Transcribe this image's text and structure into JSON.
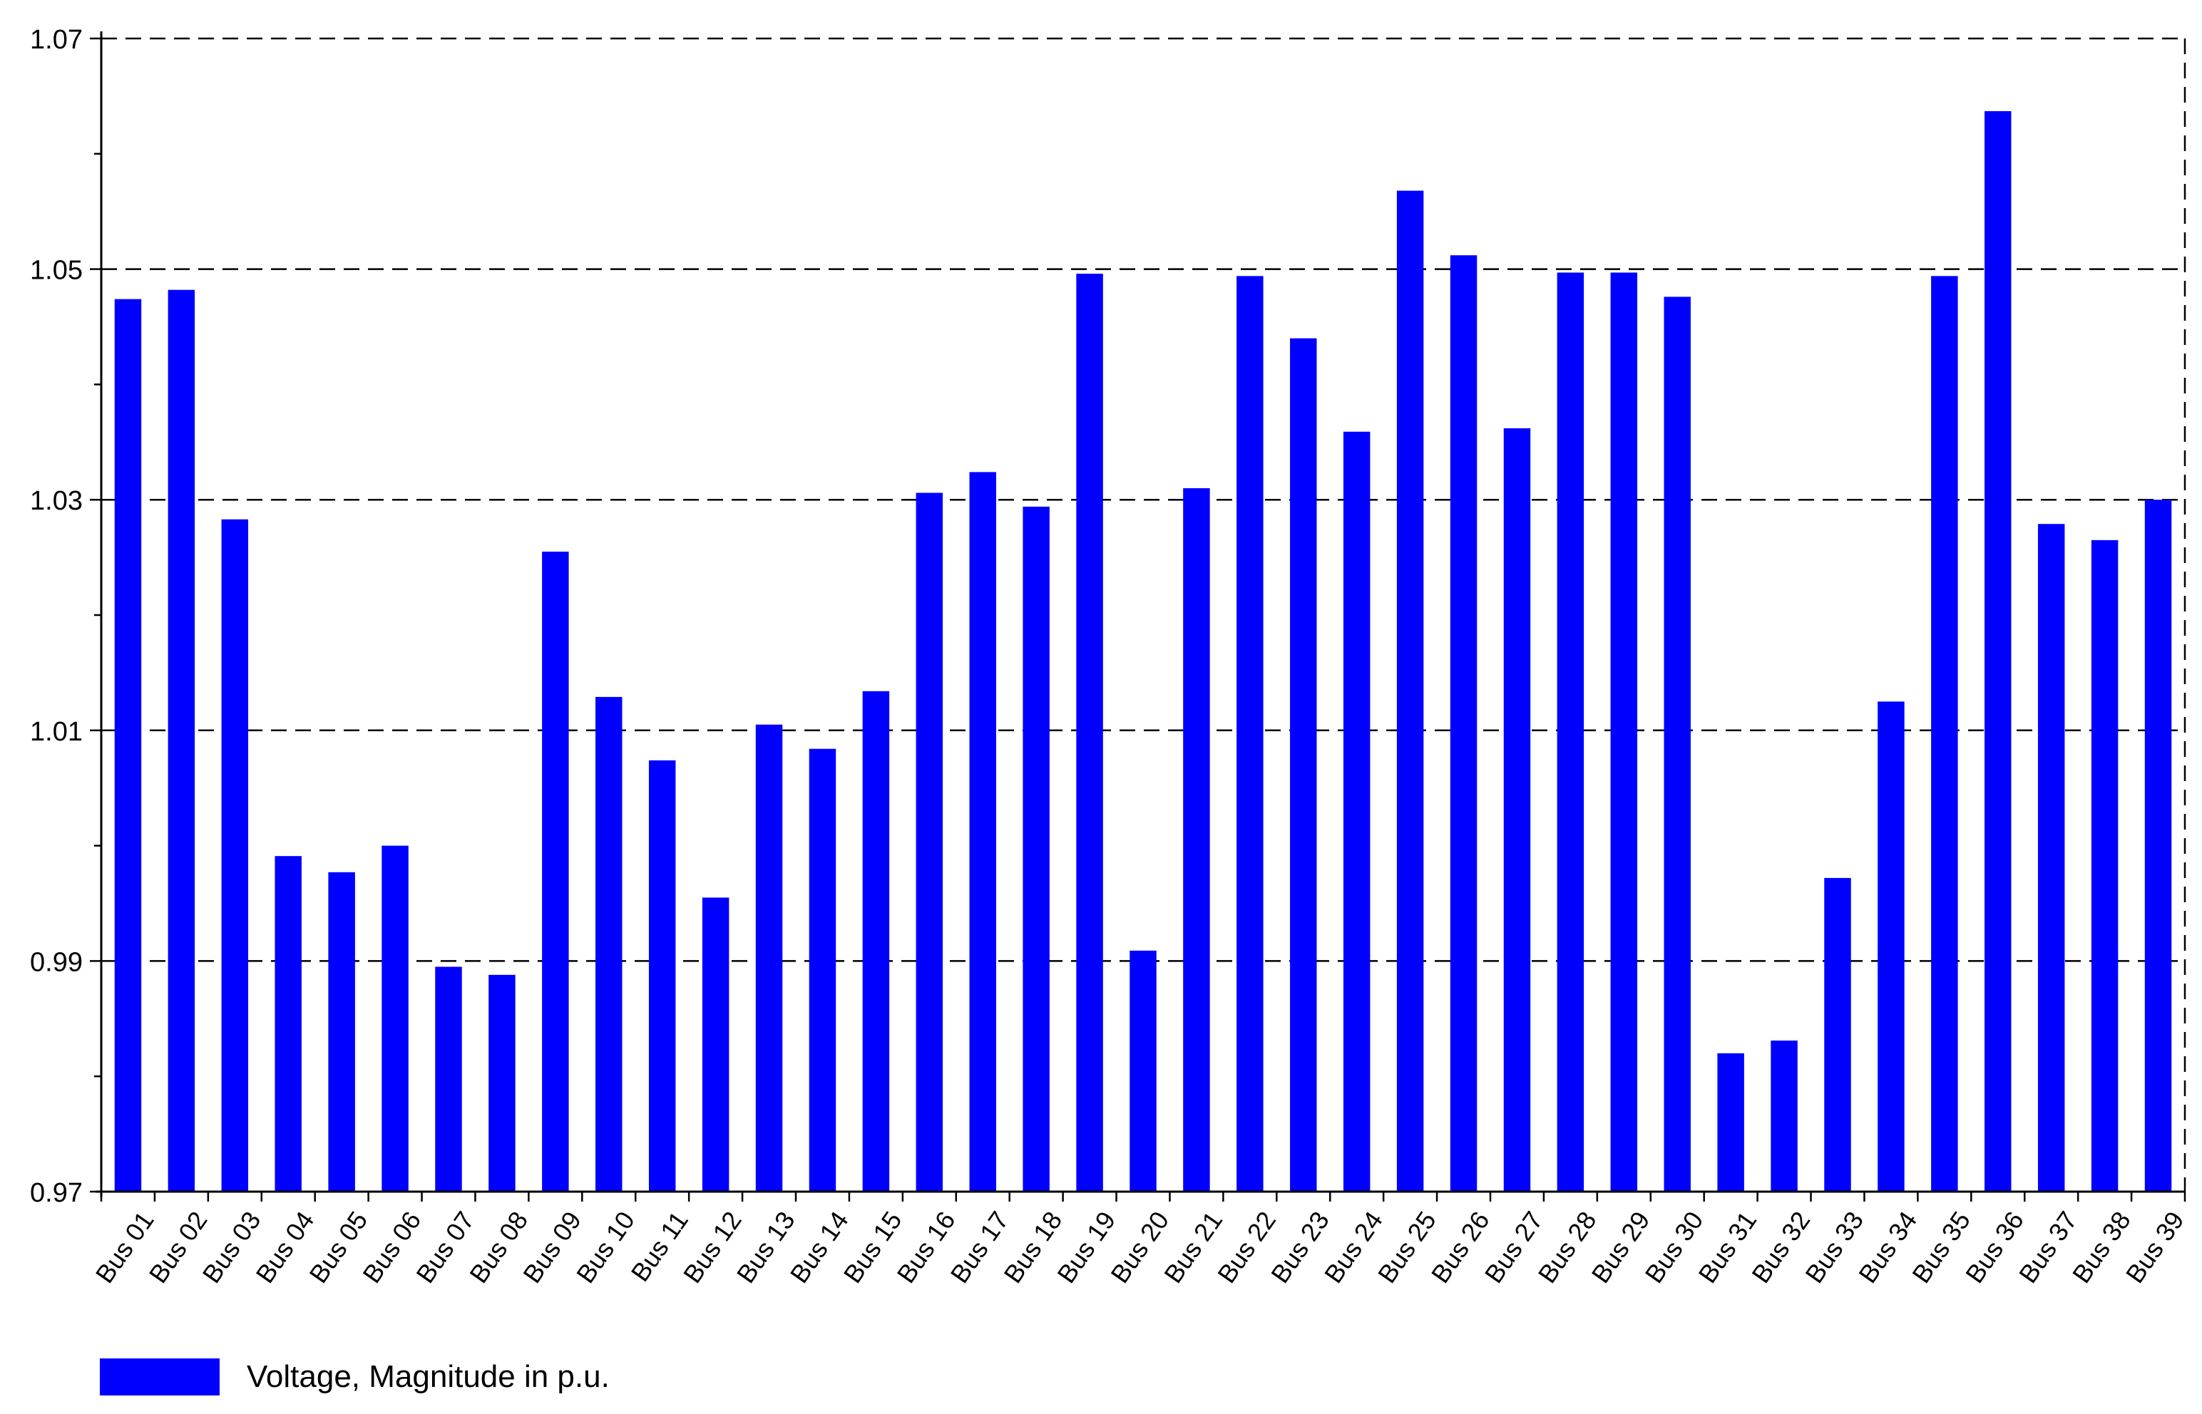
{
  "chart_data": {
    "type": "bar",
    "categories": [
      "Bus 01",
      "Bus 02",
      "Bus 03",
      "Bus 04",
      "Bus 05",
      "Bus 06",
      "Bus 07",
      "Bus 08",
      "Bus 09",
      "Bus 10",
      "Bus 11",
      "Bus 12",
      "Bus 13",
      "Bus 14",
      "Bus 15",
      "Bus 16",
      "Bus 17",
      "Bus 18",
      "Bus 19",
      "Bus 20",
      "Bus 21",
      "Bus 22",
      "Bus 23",
      "Bus 24",
      "Bus 25",
      "Bus 26",
      "Bus 27",
      "Bus 28",
      "Bus 29",
      "Bus 30",
      "Bus 31",
      "Bus 32",
      "Bus 33",
      "Bus 34",
      "Bus 35",
      "Bus 36",
      "Bus 37",
      "Bus 38",
      "Bus 39"
    ],
    "series": [
      {
        "name": "Voltage, Magnitude in p.u.",
        "color": "#0000ff",
        "values": [
          1.0474,
          1.0482,
          1.0283,
          0.9991,
          0.9977,
          1.0,
          0.9895,
          0.9888,
          1.0255,
          1.0129,
          1.0074,
          0.9955,
          1.0105,
          1.0084,
          1.0134,
          1.0306,
          1.0324,
          1.0294,
          1.0496,
          0.9909,
          1.031,
          1.0494,
          1.044,
          1.0359,
          1.0568,
          1.0512,
          1.0362,
          1.0497,
          1.0497,
          1.0476,
          0.982,
          0.9831,
          0.9972,
          1.0125,
          1.0494,
          1.0637,
          1.0279,
          1.0265,
          1.03
        ]
      }
    ],
    "ylim": [
      0.97,
      1.07
    ],
    "yticks": [
      "0.97",
      "0.99",
      "1.01",
      "1.03",
      "1.05",
      "1.07"
    ],
    "title": "",
    "xlabel": "",
    "ylabel": "",
    "grid": "horizontal dashed at labeled ticks",
    "legend_position": "bottom-left"
  }
}
